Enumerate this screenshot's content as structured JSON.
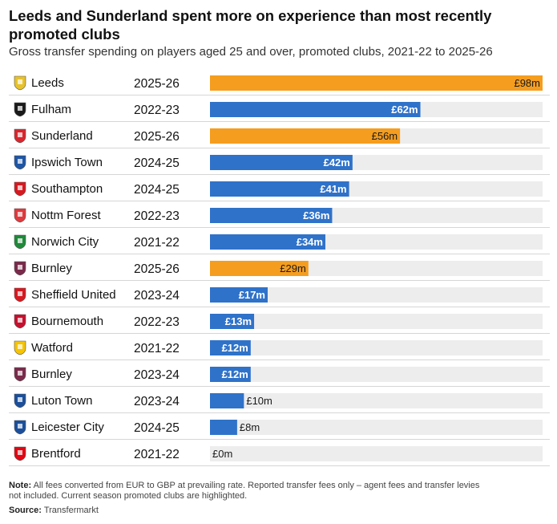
{
  "header": {
    "title": "Leeds and Sunderland spent more on experience than most recently promoted clubs",
    "subtitle": "Gross transfer spending on players aged 25 and over, promoted clubs, 2021-22 to 2025-26"
  },
  "footer": {
    "note_label": "Note:",
    "note_text": "All fees converted from EUR to GBP at prevailing rate. Reported transfer fees only – agent fees and transfer levies not included. Current season promoted clubs are highlighted.",
    "source_label": "Source:",
    "source_text": "Transfermarkt"
  },
  "colors": {
    "highlight": "#f59d1e",
    "base": "#2f72c9",
    "track": "#ededed",
    "divider": "#d6d6d6"
  },
  "chart_data": {
    "type": "bar",
    "orientation": "horizontal",
    "unit_prefix": "£",
    "unit_suffix": "m",
    "xlim": [
      0,
      98
    ],
    "grid": false,
    "legend": "none",
    "rows": [
      {
        "club": "Leeds",
        "season": "2025-26",
        "value": 98,
        "label": "£98m",
        "highlight": true,
        "crest_icon": "leeds-crest-icon"
      },
      {
        "club": "Fulham",
        "season": "2022-23",
        "value": 62,
        "label": "£62m",
        "highlight": false,
        "crest_icon": "fulham-crest-icon"
      },
      {
        "club": "Sunderland",
        "season": "2025-26",
        "value": 56,
        "label": "£56m",
        "highlight": true,
        "crest_icon": "sunderland-crest-icon"
      },
      {
        "club": "Ipswich Town",
        "season": "2024-25",
        "value": 42,
        "label": "£42m",
        "highlight": false,
        "crest_icon": "ipswich-crest-icon"
      },
      {
        "club": "Southampton",
        "season": "2024-25",
        "value": 41,
        "label": "£41m",
        "highlight": false,
        "crest_icon": "southampton-crest-icon"
      },
      {
        "club": "Nottm Forest",
        "season": "2022-23",
        "value": 36,
        "label": "£36m",
        "highlight": false,
        "crest_icon": "forest-crest-icon"
      },
      {
        "club": "Norwich City",
        "season": "2021-22",
        "value": 34,
        "label": "£34m",
        "highlight": false,
        "crest_icon": "norwich-crest-icon"
      },
      {
        "club": "Burnley",
        "season": "2025-26",
        "value": 29,
        "label": "£29m",
        "highlight": true,
        "crest_icon": "burnley-crest-icon"
      },
      {
        "club": "Sheffield United",
        "season": "2023-24",
        "value": 17,
        "label": "£17m",
        "highlight": false,
        "crest_icon": "sheffield-crest-icon"
      },
      {
        "club": "Bournemouth",
        "season": "2022-23",
        "value": 13,
        "label": "£13m",
        "highlight": false,
        "crest_icon": "bournemouth-crest-icon"
      },
      {
        "club": "Watford",
        "season": "2021-22",
        "value": 12,
        "label": "£12m",
        "highlight": false,
        "crest_icon": "watford-crest-icon"
      },
      {
        "club": "Burnley",
        "season": "2023-24",
        "value": 12,
        "label": "£12m",
        "highlight": false,
        "crest_icon": "burnley-crest-icon"
      },
      {
        "club": "Luton Town",
        "season": "2023-24",
        "value": 10,
        "label": "£10m",
        "highlight": false,
        "crest_icon": "luton-crest-icon"
      },
      {
        "club": "Leicester City",
        "season": "2024-25",
        "value": 8,
        "label": "£8m",
        "highlight": false,
        "crest_icon": "leicester-crest-icon"
      },
      {
        "club": "Brentford",
        "season": "2021-22",
        "value": 0,
        "label": "£0m",
        "highlight": false,
        "crest_icon": "brentford-crest-icon"
      }
    ]
  }
}
